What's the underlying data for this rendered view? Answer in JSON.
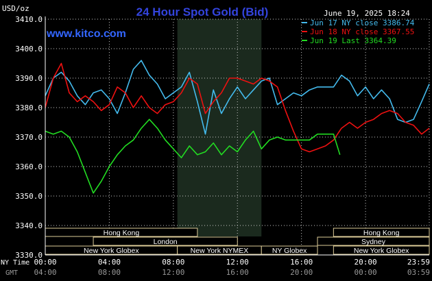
{
  "chart_data": {
    "type": "line",
    "title": "24 Hour Spot Gold (Bid)",
    "unit_label": "USD/oz",
    "timestamp": "June 19, 2025 18:24",
    "watermark": "www.kitco.com",
    "ylim": [
      3330,
      3410
    ],
    "y_ticks": [
      "3410.0",
      "3400.0",
      "3390.0",
      "3380.0",
      "3370.0",
      "3360.0",
      "3350.0",
      "3340.0",
      "3330.0"
    ],
    "grid": true,
    "legend_position": "top-right",
    "colors": {
      "jun17": "#44bbee",
      "jun18": "#ee1111",
      "jun19": "#22dd22",
      "grid": "#cccccc",
      "nymex_shade": "#1b2a1e",
      "session_box": "#ddcc99"
    },
    "x_axis": {
      "ny_label": "NY Time",
      "gmt_label": "GMT",
      "ny_ticks": [
        "00:00",
        "04:00",
        "08:00",
        "12:00",
        "16:00",
        "20:00",
        "23:59"
      ],
      "gmt_ticks": [
        "04:00",
        "08:00",
        "12:00",
        "16:00",
        "20:00",
        "00:00",
        "03:59"
      ]
    },
    "series": [
      {
        "name": "Jun 17 NY close 3386.74",
        "key": "jun17",
        "x": [
          0,
          0.5,
          1,
          1.5,
          2,
          2.5,
          3,
          3.5,
          4,
          4.5,
          5,
          5.5,
          6,
          6.5,
          7,
          7.5,
          8,
          8.5,
          9,
          9.5,
          10,
          10.5,
          11,
          11.5,
          12,
          12.5,
          13,
          13.5,
          14,
          14.5,
          15,
          15.5,
          16,
          16.5,
          17,
          17.5,
          18,
          18.5,
          19,
          19.5,
          20,
          20.5,
          21,
          21.5,
          22,
          22.5,
          23,
          23.5,
          23.98
        ],
        "values": [
          3384,
          3390,
          3392,
          3389,
          3384,
          3381,
          3385,
          3386,
          3383,
          3378,
          3385,
          3393,
          3396,
          3391,
          3388,
          3383,
          3385,
          3387,
          3392,
          3382,
          3371,
          3386,
          3378,
          3383,
          3387,
          3383,
          3386,
          3389,
          3390,
          3381,
          3383,
          3385,
          3384,
          3386,
          3387,
          3387,
          3387,
          3391,
          3389,
          3384,
          3387,
          3383,
          3386,
          3383,
          3376,
          3375,
          3376,
          3382,
          3388
        ]
      },
      {
        "name": "Jun 18 NY close 3367.55",
        "key": "jun18",
        "x": [
          0,
          0.5,
          1,
          1.5,
          2,
          2.5,
          3,
          3.5,
          4,
          4.5,
          5,
          5.5,
          6,
          6.5,
          7,
          7.5,
          8,
          8.5,
          9,
          9.5,
          10,
          10.5,
          11,
          11.5,
          12,
          12.5,
          13,
          13.5,
          14,
          14.5,
          15,
          15.5,
          16,
          16.5,
          17,
          17.5,
          18,
          18.5,
          19,
          19.5,
          20,
          20.5,
          21,
          21.5,
          22,
          22.5,
          23,
          23.5,
          23.98
        ],
        "values": [
          3380,
          3390,
          3395,
          3385,
          3382,
          3384,
          3382,
          3379,
          3381,
          3387,
          3385,
          3380,
          3384,
          3380,
          3378,
          3381,
          3382,
          3385,
          3390,
          3388,
          3378,
          3382,
          3385,
          3390,
          3390,
          3389,
          3388,
          3390,
          3389,
          3387,
          3379,
          3372,
          3366,
          3365,
          3366,
          3367,
          3369,
          3373,
          3375,
          3373,
          3375,
          3376,
          3378,
          3379,
          3378,
          3375,
          3374,
          3371,
          3373
        ]
      },
      {
        "name": "Jun 19 Last 3364.39",
        "key": "jun19",
        "x": [
          0,
          0.5,
          1,
          1.5,
          2,
          2.5,
          3,
          3.5,
          4,
          4.5,
          5,
          5.5,
          6,
          6.5,
          7,
          7.5,
          8,
          8.5,
          9,
          9.5,
          10,
          10.5,
          11,
          11.5,
          12,
          12.5,
          13,
          13.5,
          14,
          14.5,
          15,
          15.5,
          16,
          16.5,
          17,
          17.5,
          18,
          18.4
        ],
        "values": [
          3372,
          3371,
          3372,
          3370,
          3365,
          3358,
          3351,
          3355,
          3360,
          3364,
          3367,
          3369,
          3373,
          3376,
          3373,
          3369,
          3366,
          3363,
          3367,
          3364,
          3365,
          3368,
          3364,
          3367,
          3365,
          3369,
          3372,
          3366,
          3369,
          3370,
          3369,
          3369,
          3369,
          3369,
          3371,
          3371,
          3371,
          3364
        ]
      }
    ],
    "nymex_session": {
      "x": [
        8.25,
        13.5
      ]
    },
    "sessions": [
      {
        "label": "Hong Kong",
        "row": 1,
        "start": 0,
        "end": 9.5
      },
      {
        "label": "Hong Kong",
        "row": 1,
        "start": 18.0,
        "end": 23.98
      },
      {
        "label": "London",
        "row": 2,
        "start": 3.0,
        "end": 12.0
      },
      {
        "label": "Sydney",
        "row": 2,
        "start": 17.0,
        "end": 23.98
      },
      {
        "label": "New York Globex",
        "row": 3,
        "start": 0,
        "end": 8.25
      },
      {
        "label": "New York NYMEX",
        "row": 3,
        "start": 8.25,
        "end": 13.5
      },
      {
        "label": "NY Globex",
        "row": 3,
        "start": 13.5,
        "end": 17.0
      },
      {
        "label": "New York Globex",
        "row": 3,
        "start": 18.0,
        "end": 23.98
      }
    ]
  }
}
